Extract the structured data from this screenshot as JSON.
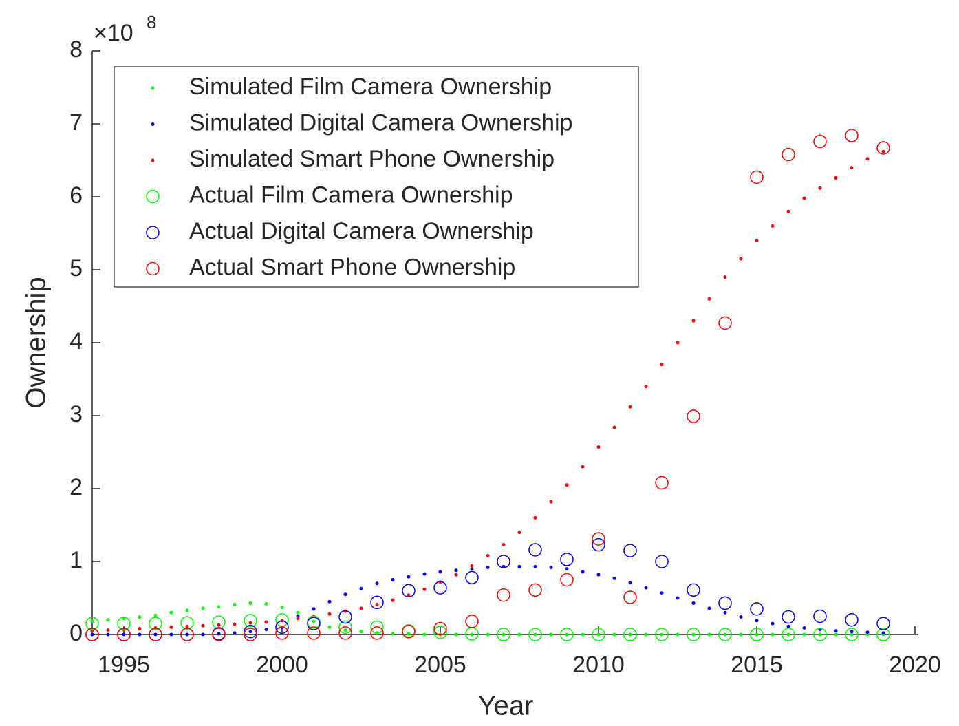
{
  "chart_data": {
    "type": "scatter",
    "xlabel": "Year",
    "ylabel": "Ownership",
    "y_multiplier": {
      "base": "×10",
      "exponent": "8"
    },
    "xlim": [
      1994,
      2020
    ],
    "xticks": [
      1995,
      2000,
      2005,
      2010,
      2015,
      2020
    ],
    "ylim": [
      0,
      8
    ],
    "yticks": [
      0,
      1,
      2,
      3,
      4,
      5,
      6,
      7,
      8
    ],
    "legend": "upper left",
    "grid": false,
    "series": [
      {
        "name": "Simulated Film Camera Ownership",
        "color": "#00ff00",
        "marker": "dot",
        "x": [
          1994,
          1994.5,
          1995,
          1995.5,
          1996,
          1996.5,
          1997,
          1997.5,
          1998,
          1998.5,
          1999,
          1999.5,
          2000,
          2000.5,
          2001,
          2001.5,
          2002,
          2002.5,
          2003,
          2003.5,
          2004,
          2004.5,
          2005,
          2005.5,
          2006,
          2006.5,
          2007,
          2007.5,
          2008,
          2008.5,
          2009,
          2009.5,
          2010,
          2010.5,
          2011,
          2011.5,
          2012,
          2012.5,
          2013,
          2013.5,
          2014,
          2014.5,
          2015,
          2015.5,
          2016,
          2016.5,
          2017,
          2017.5,
          2018,
          2018.5,
          2019
        ],
        "values": [
          0.18,
          0.2,
          0.22,
          0.24,
          0.26,
          0.3,
          0.33,
          0.36,
          0.38,
          0.41,
          0.43,
          0.42,
          0.37,
          0.3,
          0.18,
          0.1,
          0.06,
          0.04,
          0.02,
          0.01,
          0.01,
          0,
          0,
          0,
          0,
          0,
          0,
          0,
          0,
          0,
          0,
          0,
          0,
          0,
          0,
          0,
          0,
          0,
          0,
          0,
          0,
          0,
          0,
          0,
          0,
          0,
          0,
          0,
          0,
          0,
          0
        ]
      },
      {
        "name": "Simulated Digital Camera Ownership",
        "color": "#0000ff",
        "marker": "dot",
        "x": [
          1994,
          1994.5,
          1995,
          1995.5,
          1996,
          1996.5,
          1997,
          1997.5,
          1998,
          1998.5,
          1999,
          1999.5,
          2000,
          2000.5,
          2001,
          2001.5,
          2002,
          2002.5,
          2003,
          2003.5,
          2004,
          2004.5,
          2005,
          2005.5,
          2006,
          2006.5,
          2007,
          2007.5,
          2008,
          2008.5,
          2009,
          2009.5,
          2010,
          2010.5,
          2011,
          2011.5,
          2012,
          2012.5,
          2013,
          2013.5,
          2014,
          2014.5,
          2015,
          2015.5,
          2016,
          2016.5,
          2017,
          2017.5,
          2018,
          2018.5,
          2019
        ],
        "values": [
          0,
          0,
          0,
          0,
          0,
          0,
          0,
          0,
          0.01,
          0.02,
          0.04,
          0.07,
          0.1,
          0.25,
          0.35,
          0.45,
          0.55,
          0.63,
          0.7,
          0.75,
          0.79,
          0.83,
          0.86,
          0.88,
          0.9,
          0.92,
          0.93,
          0.93,
          0.93,
          0.92,
          0.9,
          0.86,
          0.82,
          0.77,
          0.71,
          0.64,
          0.57,
          0.5,
          0.43,
          0.36,
          0.3,
          0.24,
          0.19,
          0.15,
          0.11,
          0.09,
          0.07,
          0.05,
          0.04,
          0.03,
          0.02
        ]
      },
      {
        "name": "Simulated Smart Phone Ownership",
        "color": "#ff0000",
        "marker": "dot",
        "x": [
          1994,
          1994.5,
          1995,
          1995.5,
          1996,
          1996.5,
          1997,
          1997.5,
          1998,
          1998.5,
          1999,
          1999.5,
          2000,
          2000.5,
          2001,
          2001.5,
          2002,
          2002.5,
          2003,
          2003.5,
          2004,
          2004.5,
          2005,
          2005.5,
          2006,
          2006.5,
          2007,
          2007.5,
          2008,
          2008.5,
          2009,
          2009.5,
          2010,
          2010.5,
          2011,
          2011.5,
          2012,
          2012.5,
          2013,
          2013.5,
          2014,
          2014.5,
          2015,
          2015.5,
          2016,
          2016.5,
          2017,
          2017.5,
          2018,
          2018.5,
          2019
        ],
        "values": [
          0.05,
          0.06,
          0.07,
          0.08,
          0.09,
          0.1,
          0.11,
          0.12,
          0.13,
          0.14,
          0.16,
          0.17,
          0.19,
          0.22,
          0.25,
          0.28,
          0.32,
          0.36,
          0.41,
          0.47,
          0.54,
          0.62,
          0.72,
          0.82,
          0.94,
          1.08,
          1.23,
          1.4,
          1.6,
          1.82,
          2.05,
          2.3,
          2.57,
          2.84,
          3.12,
          3.4,
          3.7,
          4.0,
          4.3,
          4.6,
          4.9,
          5.15,
          5.4,
          5.6,
          5.8,
          5.98,
          6.12,
          6.26,
          6.4,
          6.52,
          6.62
        ]
      },
      {
        "name": "Actual Film Camera Ownership",
        "color": "#00ff00",
        "marker": "circle",
        "x": [
          1994,
          1995,
          1996,
          1997,
          1998,
          1999,
          2000,
          2001,
          2002,
          2003,
          2004,
          2005,
          2006,
          2007,
          2008,
          2009,
          2010,
          2011,
          2012,
          2013,
          2014,
          2015,
          2016,
          2017,
          2018,
          2019
        ],
        "values": [
          0.15,
          0.15,
          0.15,
          0.16,
          0.17,
          0.19,
          0.2,
          0.17,
          0.1,
          0.1,
          0.05,
          0.03,
          0.01,
          0,
          0,
          0,
          0,
          0,
          0,
          0,
          0,
          0,
          0,
          0,
          0,
          0
        ]
      },
      {
        "name": "Actual Digital Camera Ownership",
        "color": "#0000ff",
        "marker": "circle",
        "x": [
          1994,
          1995,
          1996,
          1997,
          1998,
          1999,
          2000,
          2001,
          2002,
          2003,
          2004,
          2005,
          2006,
          2007,
          2008,
          2009,
          2010,
          2011,
          2012,
          2013,
          2014,
          2015,
          2016,
          2017,
          2018,
          2019
        ],
        "values": [
          0,
          0,
          0,
          0,
          0.01,
          0.04,
          0.1,
          0.15,
          0.24,
          0.44,
          0.6,
          0.64,
          0.78,
          1.0,
          1.16,
          1.03,
          1.23,
          1.15,
          1.0,
          0.61,
          0.43,
          0.35,
          0.24,
          0.25,
          0.2,
          0.15
        ]
      },
      {
        "name": "Actual Smart Phone Ownership",
        "color": "#ff0000",
        "marker": "circle",
        "x": [
          1994,
          1995,
          1996,
          1997,
          1998,
          1999,
          2000,
          2001,
          2002,
          2003,
          2004,
          2005,
          2006,
          2007,
          2008,
          2009,
          2010,
          2011,
          2012,
          2013,
          2014,
          2015,
          2016,
          2017,
          2018,
          2019
        ],
        "values": [
          0,
          0,
          0,
          0,
          0,
          0,
          0.02,
          0.02,
          0.02,
          0.02,
          0.04,
          0.08,
          0.18,
          0.54,
          0.61,
          0.75,
          1.31,
          0.51,
          2.08,
          2.99,
          4.27,
          6.27,
          6.58,
          6.76,
          6.84,
          6.67
        ]
      }
    ]
  }
}
